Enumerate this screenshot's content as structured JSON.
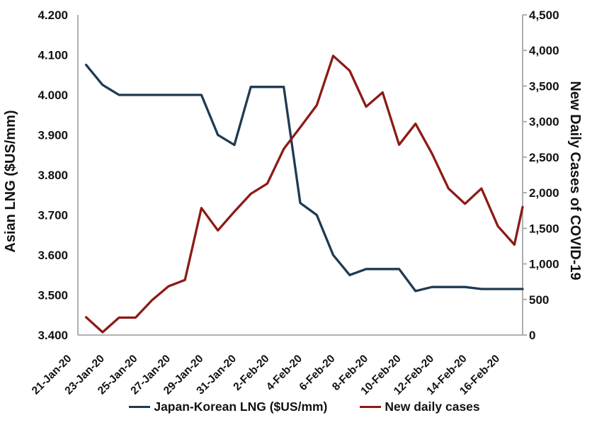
{
  "chart_data": {
    "type": "line",
    "title": "",
    "grid": false,
    "legend_position": "bottom",
    "x_categories": [
      "21-Jan-20",
      "22-Jan-20",
      "23-Jan-20",
      "24-Jan-20",
      "25-Jan-20",
      "26-Jan-20",
      "27-Jan-20",
      "28-Jan-20",
      "29-Jan-20",
      "30-Jan-20",
      "31-Jan-20",
      "1-Feb-20",
      "2-Feb-20",
      "3-Feb-20",
      "4-Feb-20",
      "5-Feb-20",
      "6-Feb-20",
      "7-Feb-20",
      "8-Feb-20",
      "9-Feb-20",
      "10-Feb-20",
      "11-Feb-20",
      "12-Feb-20",
      "13-Feb-20",
      "14-Feb-20",
      "15-Feb-20",
      "16-Feb-20",
      "17-Feb-20"
    ],
    "x_tick_labels": [
      "21-Jan-20",
      "23-Jan-20",
      "25-Jan-20",
      "27-Jan-20",
      "29-Jan-20",
      "31-Jan-20",
      "2-Feb-20",
      "4-Feb-20",
      "6-Feb-20",
      "8-Feb-20",
      "10-Feb-20",
      "12-Feb-20",
      "14-Feb-20",
      "16-Feb-20"
    ],
    "series": [
      {
        "name": "Japan-Korean LNG ($US/mm)",
        "axis": "left",
        "color": "#1F3A52",
        "values": [
          4.075,
          4.025,
          4.0,
          4.0,
          4.0,
          4.0,
          4.0,
          4.0,
          3.9,
          3.875,
          4.02,
          4.02,
          4.02,
          3.73,
          3.7,
          3.6,
          3.55,
          3.565,
          3.565,
          3.565,
          3.51,
          3.52,
          3.52,
          3.52,
          3.515,
          3.515,
          3.515,
          3.515
        ]
      },
      {
        "name": "New daily cases",
        "axis": "right",
        "color": "#8C1B15",
        "values": [
          250,
          40,
          245,
          245,
          490,
          685,
          775,
          1785,
          1470,
          1735,
          1985,
          2130,
          2615,
          2920,
          3230,
          3925,
          3715,
          3210,
          3410,
          2675,
          2970,
          2550,
          2060,
          1845,
          2060,
          1530,
          1270,
          1800
        ]
      }
    ],
    "left_axis": {
      "title": "Asian LNG ($US/mm)",
      "min": 3.4,
      "max": 4.2,
      "step": 0.1,
      "tick_labels": [
        "4.200",
        "4.100",
        "4.000",
        "3.900",
        "3.800",
        "3.700",
        "3.600",
        "3.500",
        "3.400"
      ]
    },
    "right_axis": {
      "title": "New Daily Cases of COVID-19",
      "min": 0,
      "max": 4500,
      "step": 500,
      "tick_labels": [
        "4,500",
        "4,000",
        "3,500",
        "3,000",
        "2,500",
        "2,000",
        "1,500",
        "1,000",
        "500",
        "0"
      ]
    }
  },
  "colors": {
    "axis_line": "#A6A6A6",
    "text": "#121212",
    "lng_line": "#1F3A52",
    "cases_line": "#8C1B15"
  }
}
